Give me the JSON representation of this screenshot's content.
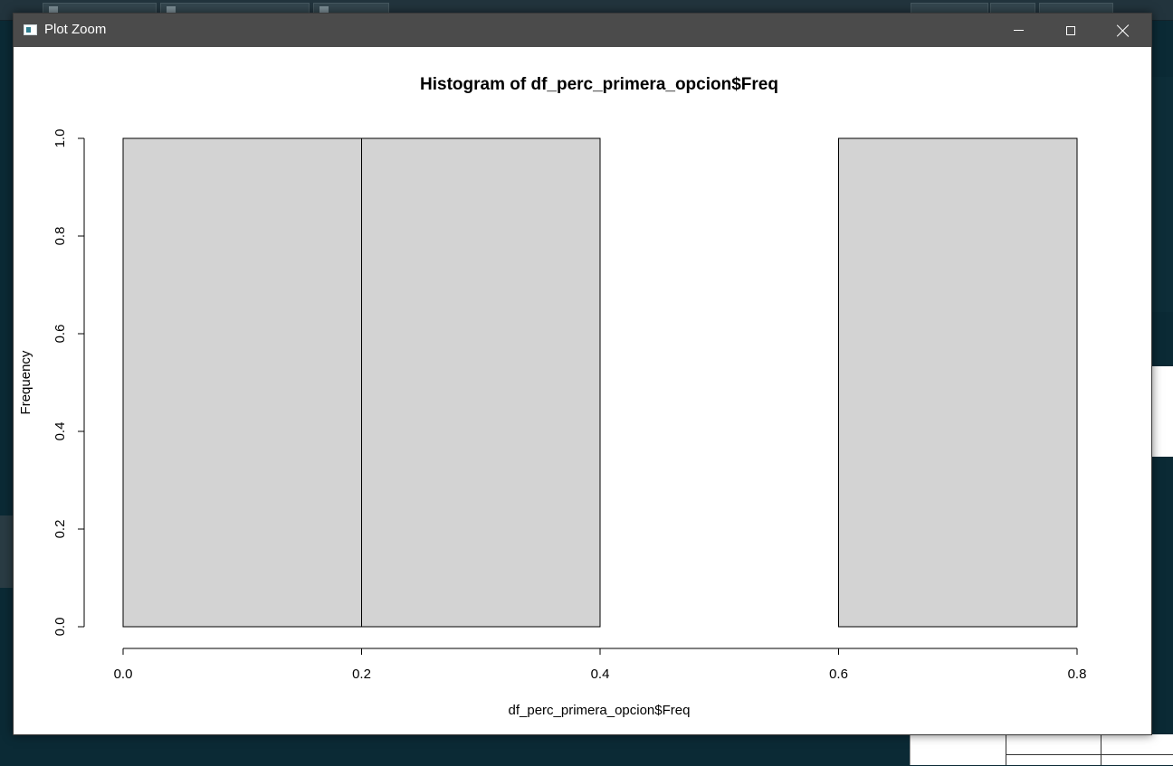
{
  "window": {
    "title": "Plot Zoom"
  },
  "chart_data": {
    "type": "bar",
    "title": "Histogram of df_perc_primera_opcion$Freq",
    "xlabel": "df_perc_primera_opcion$Freq",
    "ylabel": "Frequency",
    "bins": [
      {
        "start": 0.0,
        "end": 0.2,
        "count": 1
      },
      {
        "start": 0.2,
        "end": 0.4,
        "count": 1
      },
      {
        "start": 0.4,
        "end": 0.6,
        "count": 0
      },
      {
        "start": 0.6,
        "end": 0.8,
        "count": 1
      }
    ],
    "xlim": [
      0.0,
      0.8
    ],
    "ylim": [
      0.0,
      1.0
    ],
    "xticks": [
      "0.0",
      "0.2",
      "0.4",
      "0.6",
      "0.8"
    ],
    "yticks": [
      "0.0",
      "0.2",
      "0.4",
      "0.6",
      "0.8",
      "1.0"
    ],
    "bar_color": "#d3d3d3",
    "grid": false
  }
}
